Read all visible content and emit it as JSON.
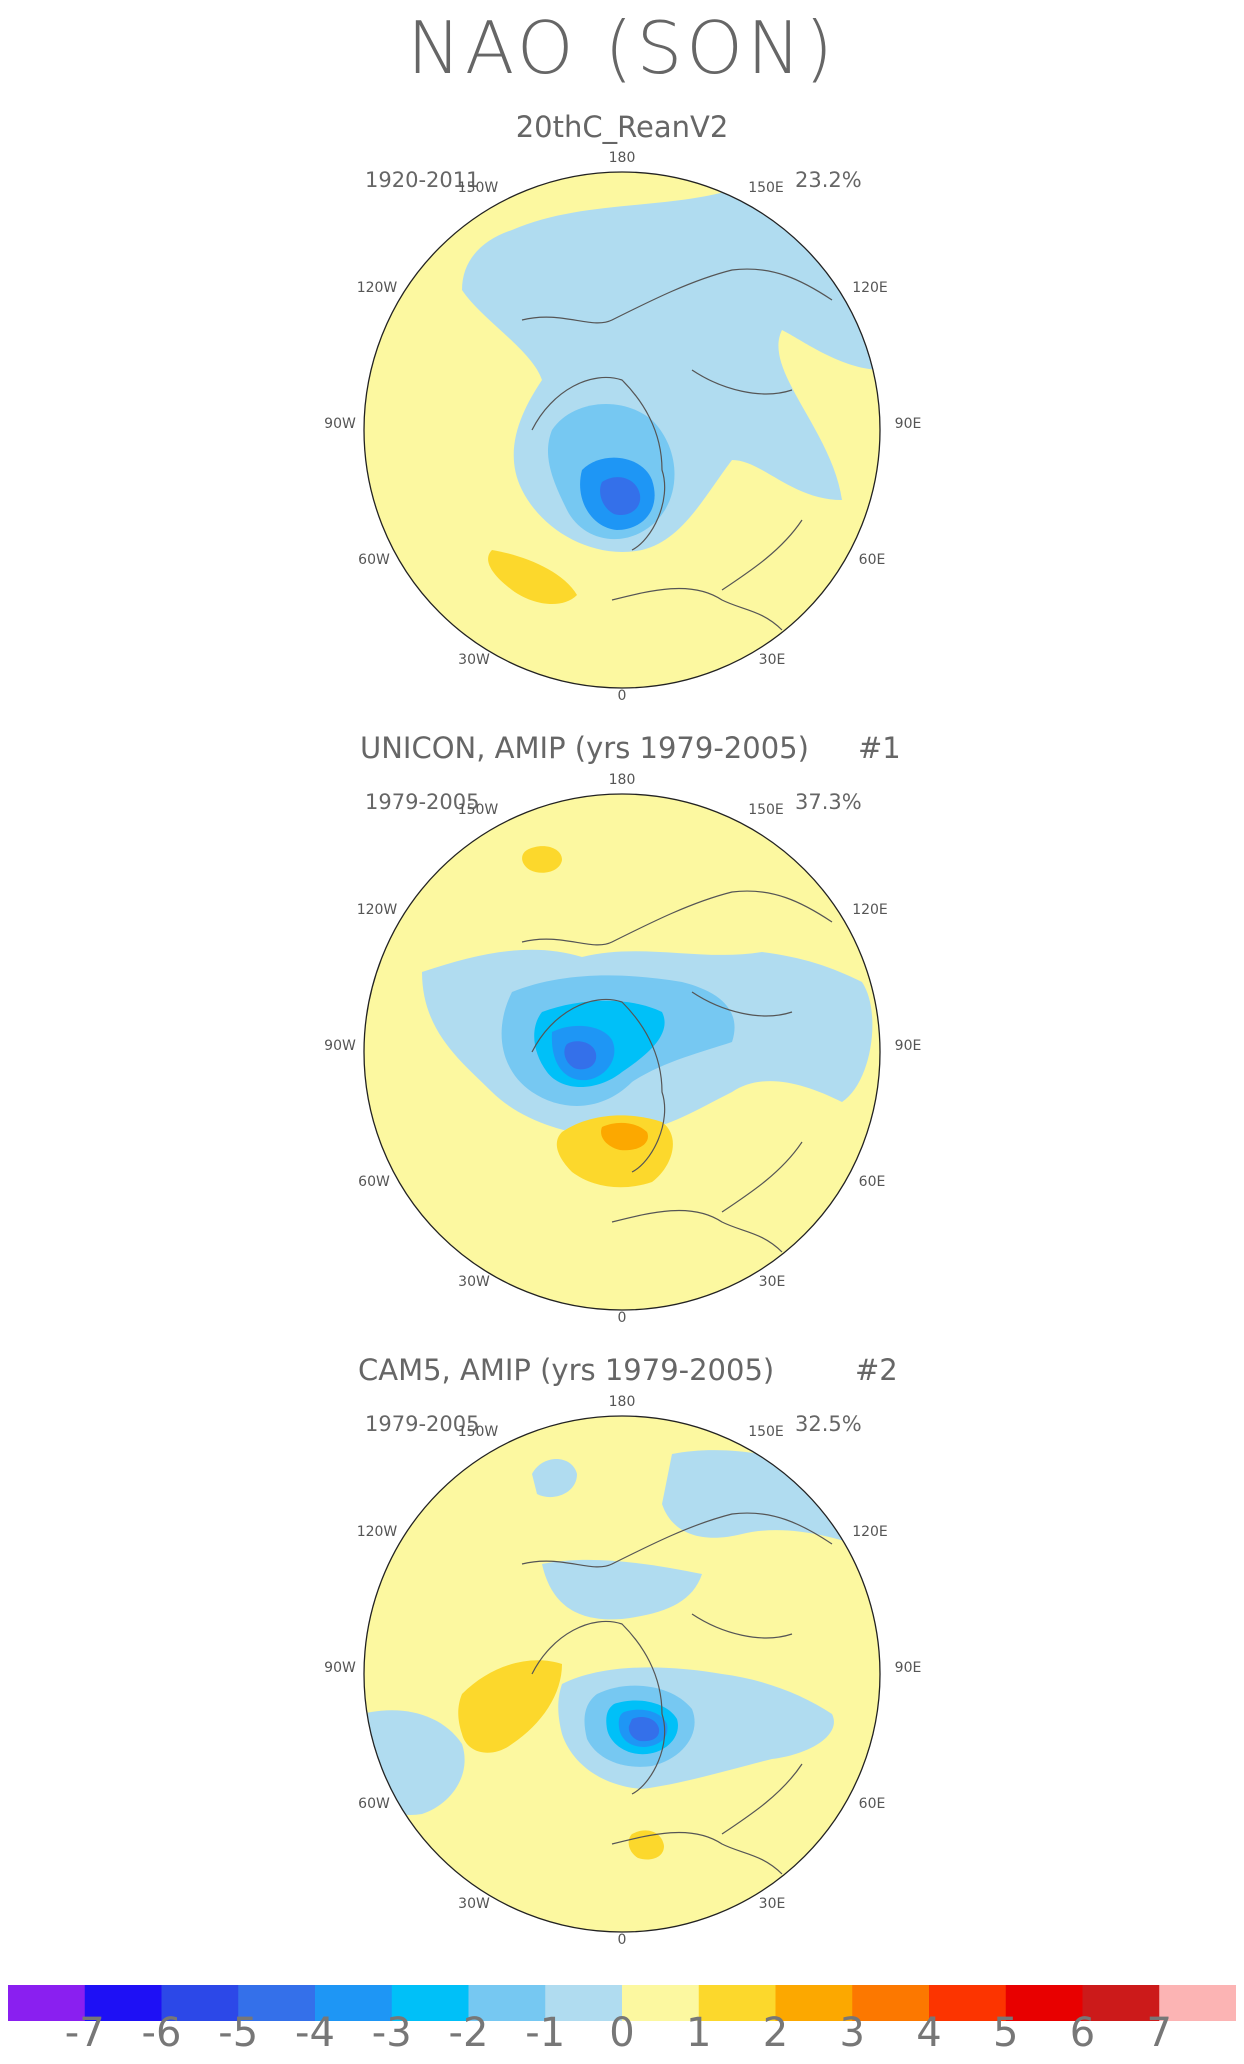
{
  "title": "NAO (SON)",
  "panels": [
    {
      "title": "20thC_ReanV2",
      "number": "",
      "period": "1920-2011",
      "variance": "23.2%",
      "lon_labels": {
        "top": "180",
        "left_top": "150W",
        "right_top": "150E",
        "left_upper": "120W",
        "right_upper": "120E",
        "left_mid": "90W",
        "right_mid": "90E",
        "left_lower": "60W",
        "right_lower": "60E",
        "left_bottom": "30W",
        "right_bottom": "30E",
        "bottom": "0"
      }
    },
    {
      "title": "UNICON, AMIP (yrs 1979-2005)",
      "number": "#1",
      "period": "1979-2005",
      "variance": "37.3%",
      "lon_labels": {
        "top": "180",
        "left_top": "150W",
        "right_top": "150E",
        "left_upper": "120W",
        "right_upper": "120E",
        "left_mid": "90W",
        "right_mid": "90E",
        "left_lower": "60W",
        "right_lower": "60E",
        "left_bottom": "30W",
        "right_bottom": "30E",
        "bottom": "0"
      }
    },
    {
      "title": "CAM5, AMIP (yrs 1979-2005)",
      "number": "#2",
      "period": "1979-2005",
      "variance": "32.5%",
      "lon_labels": {
        "top": "180",
        "left_top": "150W",
        "right_top": "150E",
        "left_upper": "120W",
        "right_upper": "120E",
        "left_mid": "90W",
        "right_mid": "90E",
        "left_lower": "60W",
        "right_lower": "60E",
        "left_bottom": "30W",
        "right_bottom": "30E",
        "bottom": "0"
      }
    }
  ],
  "colorbar": {
    "labels": [
      "-7",
      "-6",
      "-5",
      "-4",
      "-3",
      "-2",
      "-1",
      "0",
      "1",
      "2",
      "3",
      "4",
      "5",
      "6",
      "7"
    ],
    "colors": [
      "#8a1ff0",
      "#1e10f5",
      "#2c48e8",
      "#3470ea",
      "#1e96f5",
      "#00c0f8",
      "#76c8f2",
      "#b0dcf0",
      "#fcf8a0",
      "#fcd82c",
      "#fca800",
      "#fc7800",
      "#fc3400",
      "#e80000",
      "#cc1a1a",
      "#fcb4b4"
    ]
  },
  "fill_colors": {
    "ocean_land_bg": "#fcf8a0",
    "neg1": "#b0dcf0",
    "neg2": "#76c8f2",
    "neg3": "#00c0f8",
    "neg4": "#1e96f5",
    "pos1": "#fcd82c",
    "pos2": "#fca800"
  }
}
